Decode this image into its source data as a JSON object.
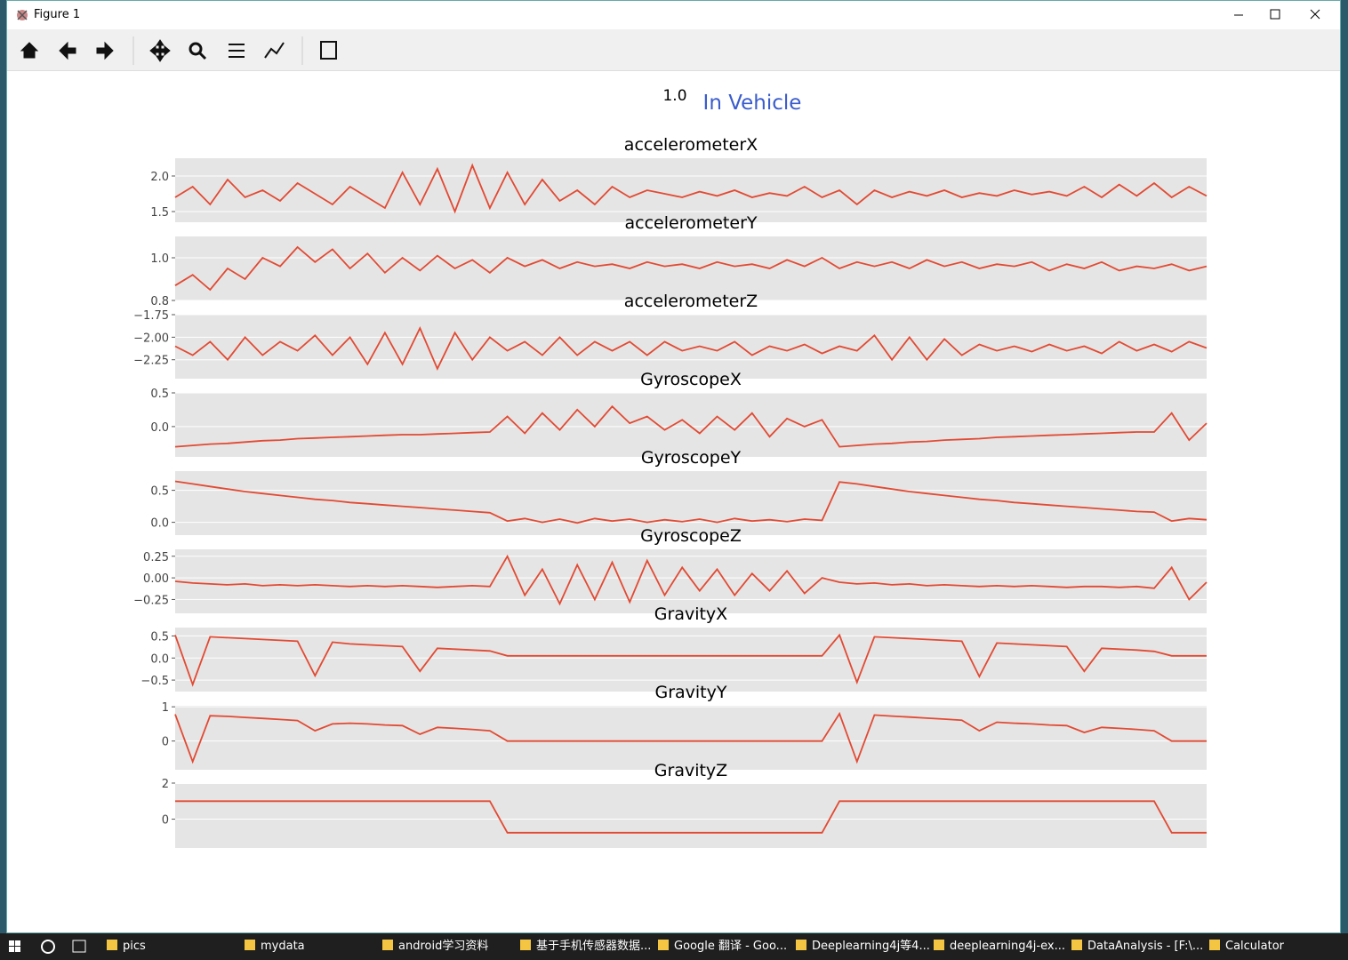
{
  "window": {
    "title": "Figure 1"
  },
  "header": {
    "value_label": "1.0",
    "title": "In Vehicle"
  },
  "taskbar": {
    "items": [
      "pics",
      "mydata",
      "android学习资料",
      "基于手机传感器数据...",
      "Google 翻译 - Goo...",
      "Deeplearning4j等4...",
      "deeplearning4j-ex...",
      "DataAnalysis - [F:\\...",
      "Calculator"
    ]
  },
  "chart_data": [
    {
      "type": "line",
      "title": "accelerometerX",
      "color": "#e24a33",
      "grid": true,
      "ylim": [
        1.35,
        2.25
      ],
      "yticks": [
        1.5,
        {
          "value": 2.0,
          "label": "2.0"
        }
      ],
      "values": [
        1.7,
        1.85,
        1.6,
        1.95,
        1.7,
        1.8,
        1.65,
        1.9,
        1.75,
        1.6,
        1.85,
        1.7,
        1.55,
        2.05,
        1.6,
        2.1,
        1.5,
        2.15,
        1.55,
        2.05,
        1.6,
        1.95,
        1.65,
        1.8,
        1.6,
        1.85,
        1.7,
        1.8,
        1.75,
        1.7,
        1.78,
        1.72,
        1.8,
        1.7,
        1.76,
        1.72,
        1.85,
        1.7,
        1.8,
        1.6,
        1.8,
        1.7,
        1.78,
        1.72,
        1.8,
        1.7,
        1.76,
        1.72,
        1.8,
        1.74,
        1.78,
        1.72,
        1.85,
        1.7,
        1.88,
        1.72,
        1.9,
        1.7,
        1.85,
        1.72
      ]
    },
    {
      "type": "line",
      "title": "accelerometerY",
      "color": "#e24a33",
      "grid": true,
      "ylim": [
        0.8,
        1.1
      ],
      "yticks": [
        0.8,
        {
          "value": 1.0,
          "label": "1.0"
        }
      ],
      "values": [
        0.87,
        0.92,
        0.85,
        0.95,
        0.9,
        1.0,
        0.96,
        1.05,
        0.98,
        1.04,
        0.95,
        1.02,
        0.93,
        1.0,
        0.94,
        1.01,
        0.95,
        0.99,
        0.93,
        1.0,
        0.96,
        0.99,
        0.95,
        0.98,
        0.96,
        0.97,
        0.95,
        0.98,
        0.96,
        0.97,
        0.95,
        0.98,
        0.96,
        0.97,
        0.95,
        0.99,
        0.96,
        1.0,
        0.95,
        0.98,
        0.96,
        0.98,
        0.95,
        0.99,
        0.96,
        0.98,
        0.95,
        0.97,
        0.96,
        0.98,
        0.94,
        0.97,
        0.95,
        0.98,
        0.94,
        0.96,
        0.95,
        0.97,
        0.94,
        0.96
      ]
    },
    {
      "type": "line",
      "title": "accelerometerZ",
      "color": "#e24a33",
      "grid": true,
      "ylim": [
        -2.46,
        -1.75
      ],
      "yticks": [
        {
          "value": -2.25,
          "label": "−2.25"
        },
        {
          "value": -2.0,
          "label": "−2.00"
        },
        {
          "value": -1.75,
          "label": "−1.75"
        }
      ],
      "values": [
        -2.1,
        -2.2,
        -2.05,
        -2.25,
        -2.0,
        -2.2,
        -2.05,
        -2.15,
        -1.98,
        -2.2,
        -2.0,
        -2.3,
        -1.95,
        -2.3,
        -1.9,
        -2.35,
        -1.95,
        -2.25,
        -2.0,
        -2.15,
        -2.05,
        -2.2,
        -2.0,
        -2.2,
        -2.05,
        -2.15,
        -2.05,
        -2.2,
        -2.05,
        -2.15,
        -2.1,
        -2.15,
        -2.05,
        -2.2,
        -2.1,
        -2.15,
        -2.08,
        -2.18,
        -2.1,
        -2.15,
        -1.98,
        -2.25,
        -2.0,
        -2.25,
        -2.02,
        -2.2,
        -2.08,
        -2.15,
        -2.1,
        -2.16,
        -2.08,
        -2.15,
        -2.1,
        -2.18,
        -2.05,
        -2.15,
        -2.08,
        -2.16,
        -2.05,
        -2.12
      ]
    },
    {
      "type": "line",
      "title": "GyroscopeX",
      "color": "#e24a33",
      "grid": true,
      "ylim": [
        -0.45,
        0.5
      ],
      "yticks": [
        {
          "value": 0.0,
          "label": "0.0"
        },
        0.5
      ],
      "values": [
        -0.3,
        -0.28,
        -0.26,
        -0.25,
        -0.23,
        -0.21,
        -0.2,
        -0.18,
        -0.17,
        -0.16,
        -0.15,
        -0.14,
        -0.13,
        -0.12,
        -0.12,
        -0.11,
        -0.1,
        -0.09,
        -0.08,
        0.15,
        -0.1,
        0.2,
        -0.05,
        0.25,
        0.0,
        0.3,
        0.05,
        0.15,
        -0.05,
        0.1,
        -0.1,
        0.15,
        -0.05,
        0.2,
        -0.15,
        0.12,
        0.0,
        0.1,
        -0.3,
        -0.28,
        -0.26,
        -0.25,
        -0.23,
        -0.22,
        -0.2,
        -0.19,
        -0.18,
        -0.16,
        -0.15,
        -0.14,
        -0.13,
        -0.12,
        -0.11,
        -0.1,
        -0.09,
        -0.08,
        -0.08,
        0.2,
        -0.2,
        0.05
      ]
    },
    {
      "type": "line",
      "title": "GyroscopeY",
      "color": "#e24a33",
      "grid": true,
      "ylim": [
        -0.2,
        0.8
      ],
      "yticks": [
        {
          "value": 0.0,
          "label": "0.0"
        },
        0.5
      ],
      "values": [
        0.64,
        0.6,
        0.56,
        0.52,
        0.48,
        0.45,
        0.42,
        0.39,
        0.36,
        0.34,
        0.31,
        0.29,
        0.27,
        0.25,
        0.23,
        0.21,
        0.19,
        0.17,
        0.15,
        0.02,
        0.06,
        0.0,
        0.05,
        -0.01,
        0.06,
        0.02,
        0.05,
        0.0,
        0.04,
        0.01,
        0.05,
        0.0,
        0.06,
        0.02,
        0.04,
        0.01,
        0.05,
        0.03,
        0.63,
        0.6,
        0.56,
        0.52,
        0.48,
        0.45,
        0.42,
        0.39,
        0.36,
        0.34,
        0.31,
        0.29,
        0.27,
        0.25,
        0.23,
        0.21,
        0.19,
        0.17,
        0.16,
        0.02,
        0.06,
        0.04
      ]
    },
    {
      "type": "line",
      "title": "GyroscopeZ",
      "color": "#e24a33",
      "grid": true,
      "ylim": [
        -0.41,
        0.33
      ],
      "yticks": [
        {
          "value": -0.25,
          "label": "−0.25"
        },
        {
          "value": 0.0,
          "label": "0.00"
        },
        0.25
      ],
      "values": [
        -0.04,
        -0.06,
        -0.07,
        -0.08,
        -0.07,
        -0.09,
        -0.08,
        -0.09,
        -0.08,
        -0.09,
        -0.1,
        -0.09,
        -0.1,
        -0.09,
        -0.1,
        -0.11,
        -0.1,
        -0.09,
        -0.1,
        0.25,
        -0.2,
        0.1,
        -0.3,
        0.15,
        -0.25,
        0.18,
        -0.28,
        0.2,
        -0.2,
        0.12,
        -0.15,
        0.1,
        -0.2,
        0.05,
        -0.15,
        0.08,
        -0.18,
        0.0,
        -0.05,
        -0.07,
        -0.06,
        -0.08,
        -0.07,
        -0.09,
        -0.08,
        -0.09,
        -0.1,
        -0.09,
        -0.1,
        -0.09,
        -0.1,
        -0.11,
        -0.1,
        -0.1,
        -0.11,
        -0.1,
        -0.12,
        0.12,
        -0.25,
        -0.05
      ]
    },
    {
      "type": "line",
      "title": "GravityX",
      "color": "#e24a33",
      "grid": true,
      "ylim": [
        -0.76,
        0.69
      ],
      "yticks": [
        {
          "value": -0.5,
          "label": "−0.5"
        },
        {
          "value": 0.0,
          "label": "0.0"
        },
        0.5
      ],
      "values": [
        0.52,
        -0.6,
        0.48,
        0.46,
        0.44,
        0.42,
        0.4,
        0.38,
        -0.4,
        0.36,
        0.32,
        0.3,
        0.28,
        0.26,
        -0.3,
        0.22,
        0.2,
        0.18,
        0.16,
        0.05,
        0.05,
        0.05,
        0.05,
        0.05,
        0.05,
        0.05,
        0.05,
        0.05,
        0.05,
        0.05,
        0.05,
        0.05,
        0.05,
        0.05,
        0.05,
        0.05,
        0.05,
        0.05,
        0.52,
        -0.55,
        0.48,
        0.46,
        0.44,
        0.42,
        0.4,
        0.38,
        -0.42,
        0.34,
        0.32,
        0.3,
        0.28,
        0.26,
        -0.3,
        0.22,
        0.2,
        0.18,
        0.15,
        0.05,
        0.05,
        0.05
      ]
    },
    {
      "type": "line",
      "title": "GravityY",
      "color": "#e24a33",
      "grid": true,
      "ylim": [
        -0.84,
        1.03
      ],
      "yticks": [
        0,
        1
      ],
      "values": [
        0.78,
        -0.6,
        0.74,
        0.72,
        0.69,
        0.66,
        0.63,
        0.6,
        0.3,
        0.5,
        0.52,
        0.5,
        0.47,
        0.45,
        0.2,
        0.4,
        0.37,
        0.34,
        0.3,
        0.0,
        0.0,
        0.0,
        0.0,
        0.0,
        0.0,
        0.0,
        0.0,
        0.0,
        0.0,
        0.0,
        0.0,
        0.0,
        0.0,
        0.0,
        0.0,
        0.0,
        0.0,
        0.0,
        0.8,
        -0.6,
        0.76,
        0.73,
        0.7,
        0.67,
        0.64,
        0.61,
        0.3,
        0.55,
        0.52,
        0.5,
        0.47,
        0.45,
        0.25,
        0.4,
        0.37,
        0.34,
        0.3,
        0.0,
        0.0,
        0.0
      ]
    },
    {
      "type": "line",
      "title": "GravityZ",
      "color": "#e24a33",
      "grid": true,
      "ylim": [
        -1.6,
        1.95
      ],
      "yticks": [
        0,
        2
      ],
      "values": [
        1.0,
        1.0,
        1.0,
        1.0,
        1.0,
        1.0,
        1.0,
        1.0,
        1.0,
        1.0,
        1.0,
        1.0,
        1.0,
        1.0,
        1.0,
        1.0,
        1.0,
        1.0,
        1.0,
        -0.75,
        -0.75,
        -0.75,
        -0.75,
        -0.75,
        -0.75,
        -0.75,
        -0.75,
        -0.75,
        -0.75,
        -0.75,
        -0.75,
        -0.75,
        -0.75,
        -0.75,
        -0.75,
        -0.75,
        -0.75,
        -0.75,
        1.0,
        1.0,
        1.0,
        1.0,
        1.0,
        1.0,
        1.0,
        1.0,
        1.0,
        1.0,
        1.0,
        1.0,
        1.0,
        1.0,
        1.0,
        1.0,
        1.0,
        1.0,
        1.0,
        -0.75,
        -0.75,
        -0.75
      ]
    }
  ]
}
